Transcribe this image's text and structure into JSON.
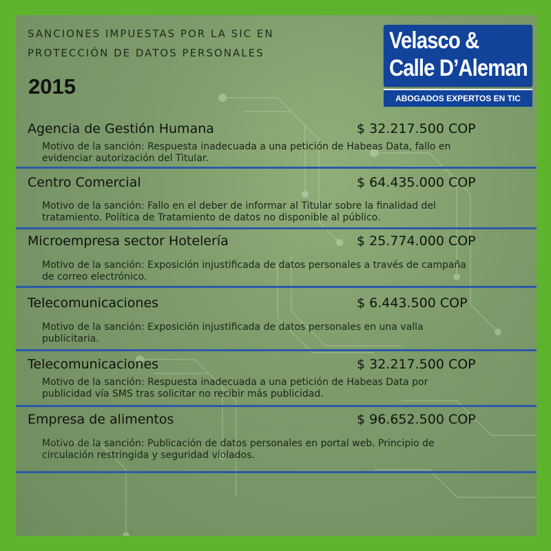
{
  "header": {
    "line1": "SANCIONES IMPUESTAS POR LA SIC EN",
    "line2": "PROTECCIÓN DE DATOS PERSONALES",
    "year": "2015"
  },
  "logo": {
    "line1": "Velasco &",
    "line2": "Calle D’Aleman",
    "tagline": "ABOGADOS EXPERTOS EN TIC"
  },
  "colors": {
    "frame": "#5fb32c",
    "panel": "#7c9a6a",
    "divider": "#2a5aa8",
    "logo_bg": "#12439a"
  },
  "sanctions": [
    {
      "name": "Agencia de Gestión Humana",
      "amount": "$ 32.217.500 COP",
      "reason": "Motivo de la sanción: Respuesta inadecuada a una petición de Habeas Data, fallo en evidenciar autorización del Titular."
    },
    {
      "name": "Centro Comercial",
      "amount": "$ 64.435.000 COP",
      "reason": "Motivo de la sanción: Fallo en el deber de informar al Titular sobre la finalidad del tratamiento. Política de Tratamiento de datos no disponible al público."
    },
    {
      "name": "Microempresa sector Hotelería",
      "amount": "$ 25.774.000 COP",
      "reason": "Motivo de la sanción: Exposición injustificada de datos personales a través de campaña de correo electrónico."
    },
    {
      "name": "Telecomunicaciones",
      "amount": "$ 6.443.500 COP",
      "reason": "Motivo de la sanción: Exposición injustificada de datos personales en una valla publicitaria."
    },
    {
      "name": "Telecomunicaciones",
      "amount": "$ 32.217.500 COP",
      "reason": "Motivo de la sanción: Respuesta inadecuada a una petición de Habeas Data por publicidad vía SMS tras solicitar no recibir más publicidad."
    },
    {
      "name": "Empresa de alimentos",
      "amount": "$ 96.652.500 COP",
      "reason": "Motivo de la sanción: Publicación de datos personales en portal web. Principio de circulación restringida y seguridad violados."
    }
  ]
}
